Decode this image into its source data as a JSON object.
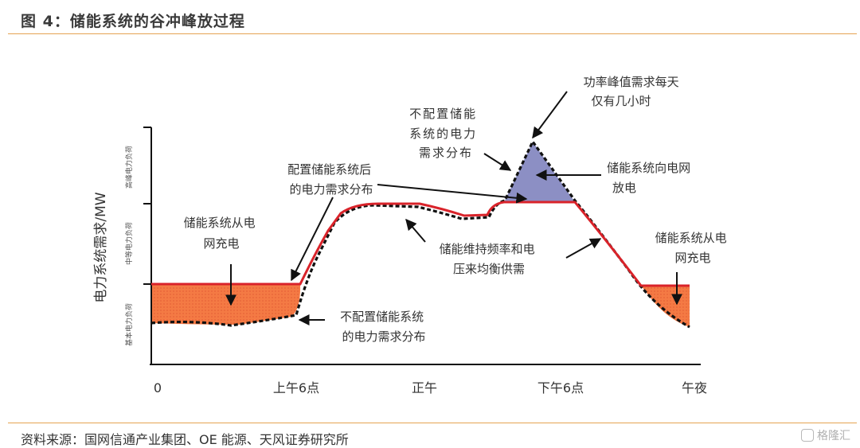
{
  "header": {
    "title": "图 4：储能系统的谷冲峰放过程"
  },
  "footer": {
    "source": "资料来源：国网信通产业集团、OE 能源、天风证券研究所"
  },
  "watermark": {
    "text": "格隆汇"
  },
  "diagram": {
    "y_axis_label": "电力系统需求/MW",
    "bands": [
      "高峰电力负荷",
      "中等电力负荷",
      "基本电力负荷"
    ],
    "x_ticks": [
      "0",
      "上午6点",
      "正午",
      "下午6点",
      "午夜"
    ],
    "annotations": {
      "charge_left": [
        "储能系统从电",
        "网充电"
      ],
      "with_storage": [
        "配置储能系统后",
        "的电力需求分布"
      ],
      "without_storage_bottom": [
        "不配置储能系统",
        "的电力需求分布"
      ],
      "without_storage_top": [
        "不配置储能",
        "系统的电力",
        "需求分布"
      ],
      "peak_hours": [
        "功率峰值需求每天",
        "仅有几小时"
      ],
      "discharge": [
        "储能系统向电网",
        "放电"
      ],
      "frequency": [
        "储能维持频率和电",
        "压来均衡供需"
      ],
      "charge_right": [
        "储能系统从电",
        "网充电"
      ]
    },
    "colors": {
      "with_storage_line": "#d9232a",
      "charge_fill": "#f47a44",
      "discharge_fill": "#8c8fc4",
      "without_storage_line": "#111111",
      "rule": "#e5a352"
    }
  }
}
